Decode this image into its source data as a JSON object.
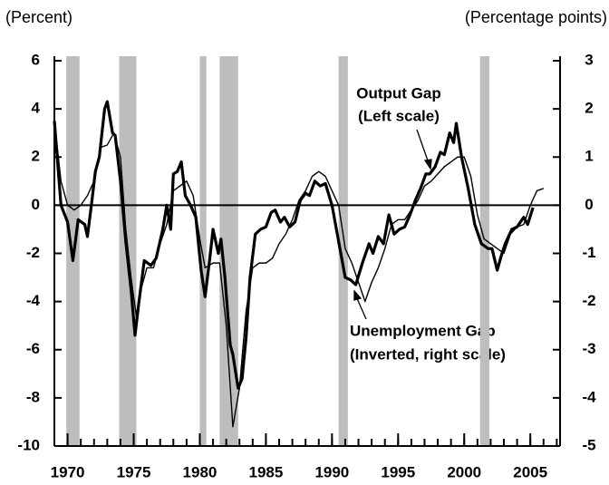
{
  "chart_data": {
    "type": "line",
    "left_axis_label": "(Percent)",
    "right_axis_label": "(Percentage points)",
    "xlim": [
      1969,
      2007.25
    ],
    "xticks": [
      1970,
      1975,
      1980,
      1985,
      1990,
      1995,
      2000,
      2005
    ],
    "ylim": [
      -10,
      6
    ],
    "yticks": [
      6,
      4,
      2,
      0,
      -2,
      -4,
      -6,
      -8,
      -10
    ],
    "y2lim": [
      -5,
      3
    ],
    "y2ticks": [
      3,
      2,
      1,
      0,
      -1,
      -2,
      -3,
      -4,
      -5
    ],
    "shaded_periods": [
      [
        1969.9,
        1970.9
      ],
      [
        1973.9,
        1975.2
      ],
      [
        1980.0,
        1980.5
      ],
      [
        1981.5,
        1982.9
      ],
      [
        1990.5,
        1991.2
      ],
      [
        2001.2,
        2001.9
      ]
    ],
    "shade_color": "#bdbdbd",
    "series": [
      {
        "name": "Output Gap",
        "color": "#000000",
        "width": 3.2,
        "axis": "y",
        "x": [
          1969.0,
          1969.5,
          1970.0,
          1970.4,
          1970.8,
          1971.3,
          1971.5,
          1971.8,
          1972.1,
          1972.4,
          1972.8,
          1973.0,
          1973.4,
          1973.6,
          1974.0,
          1974.4,
          1974.8,
          1975.1,
          1975.4,
          1975.8,
          1976.3,
          1976.7,
          1977.2,
          1977.5,
          1977.8,
          1978.0,
          1978.3,
          1978.6,
          1978.9,
          1979.3,
          1979.7,
          1980.1,
          1980.4,
          1980.8,
          1981.0,
          1981.4,
          1981.6,
          1981.9,
          1982.3,
          1982.5,
          1982.9,
          1983.2,
          1983.5,
          1983.8,
          1984.2,
          1984.6,
          1985.0,
          1985.4,
          1985.7,
          1986.1,
          1986.4,
          1986.8,
          1987.2,
          1987.6,
          1988.0,
          1988.3,
          1988.7,
          1989.1,
          1989.5,
          1990.0,
          1990.5,
          1991.0,
          1991.4,
          1991.8,
          1992.3,
          1992.8,
          1993.1,
          1993.5,
          1993.9,
          1994.3,
          1994.7,
          1995.1,
          1995.5,
          1995.9,
          1996.3,
          1996.7,
          1997.1,
          1997.4,
          1997.8,
          1998.2,
          1998.5,
          1998.9,
          1999.2,
          1999.4,
          1999.8,
          2000.3,
          2000.8,
          2001.3,
          2001.8,
          2002.1,
          2002.5,
          2002.8,
          2003.1,
          2003.6,
          2004.0,
          2004.5,
          2004.8,
          2005.2
        ],
        "values": [
          3.5,
          0,
          -0.7,
          -2.3,
          -0.6,
          -0.8,
          -1.3,
          0,
          1.4,
          2,
          4,
          4.3,
          3,
          2.9,
          1,
          -1.5,
          -3.5,
          -5.4,
          -4,
          -2.3,
          -2.5,
          -2.2,
          -1,
          0,
          -1,
          1.3,
          1.4,
          1.8,
          0.4,
          0,
          -0.5,
          -2.7,
          -3.8,
          -2,
          -1,
          -2,
          -1.4,
          -3,
          -5.8,
          -6.2,
          -7.6,
          -7.2,
          -5.5,
          -3,
          -1.2,
          -1,
          -0.9,
          -0.3,
          -0.2,
          -0.7,
          -0.5,
          -0.9,
          -0.7,
          0.2,
          0.5,
          0.4,
          1,
          0.8,
          0.9,
          0,
          -1.5,
          -3,
          -3.1,
          -3.3,
          -2.4,
          -1.6,
          -2,
          -1.3,
          -1.6,
          -0.4,
          -1.2,
          -1,
          -0.9,
          -0.4,
          0.2,
          0.7,
          1.3,
          1.3,
          1.6,
          2.2,
          2.1,
          3,
          2.6,
          3.4,
          2,
          0.7,
          -0.8,
          -1.6,
          -1.8,
          -1.8,
          -2.7,
          -2.1,
          -1.6,
          -1,
          -0.9,
          -0.5,
          -0.8,
          -0.1
        ]
      },
      {
        "name": "Unemployment Gap",
        "color": "#000000",
        "width": 1.4,
        "axis": "y2",
        "x": [
          1969.0,
          1969.5,
          1970.0,
          1970.5,
          1971.0,
          1971.5,
          1972.0,
          1972.5,
          1973.0,
          1973.5,
          1974.0,
          1974.4,
          1974.8,
          1975.2,
          1975.5,
          1976.0,
          1976.5,
          1977.0,
          1977.5,
          1978.0,
          1978.5,
          1979.0,
          1979.5,
          1980.0,
          1980.4,
          1981.0,
          1981.5,
          1982.0,
          1982.5,
          1983.0,
          1983.5,
          1984.0,
          1984.5,
          1985.0,
          1985.5,
          1986.0,
          1986.5,
          1987.0,
          1987.5,
          1988.0,
          1988.5,
          1989.0,
          1989.5,
          1990.0,
          1990.5,
          1991.0,
          1991.5,
          1992.0,
          1992.5,
          1993.0,
          1993.5,
          1994.0,
          1994.5,
          1995.0,
          1995.5,
          1996.0,
          1996.5,
          1997.0,
          1997.5,
          1998.0,
          1998.5,
          1999.0,
          1999.5,
          2000.0,
          2000.5,
          2001.0,
          2001.5,
          2002.0,
          2002.5,
          2003.0,
          2003.5,
          2004.0,
          2004.5,
          2005.0,
          2005.5,
          2006.0
        ],
        "values": [
          1.75,
          0.5,
          0,
          -0.1,
          0,
          0.2,
          0.5,
          1.2,
          1.25,
          1.5,
          1,
          -0.5,
          -1.5,
          -2.3,
          -1.8,
          -1.3,
          -1.3,
          -0.8,
          -0.4,
          0.3,
          0.4,
          0.5,
          0.2,
          -0.7,
          -1.3,
          -1.2,
          -1.2,
          -2.5,
          -4.6,
          -3.8,
          -2.2,
          -1.3,
          -1.2,
          -1.2,
          -1.1,
          -0.8,
          -0.6,
          -0.3,
          0.1,
          0.3,
          0.6,
          0.7,
          0.6,
          0.3,
          0,
          -0.9,
          -1.2,
          -1.6,
          -2,
          -1.6,
          -1.3,
          -0.9,
          -0.4,
          -0.3,
          -0.3,
          -0.1,
          0.1,
          0.4,
          0.5,
          0.65,
          0.8,
          0.9,
          1,
          1,
          0.6,
          -0.2,
          -0.7,
          -0.8,
          -0.9,
          -1,
          -0.6,
          -0.45,
          -0.4,
          0,
          0.3,
          0.35
        ]
      }
    ],
    "annotations": [
      "Output Gap",
      "(Left scale)",
      "Unemployment Gap",
      "(Inverted, right scale)"
    ]
  }
}
